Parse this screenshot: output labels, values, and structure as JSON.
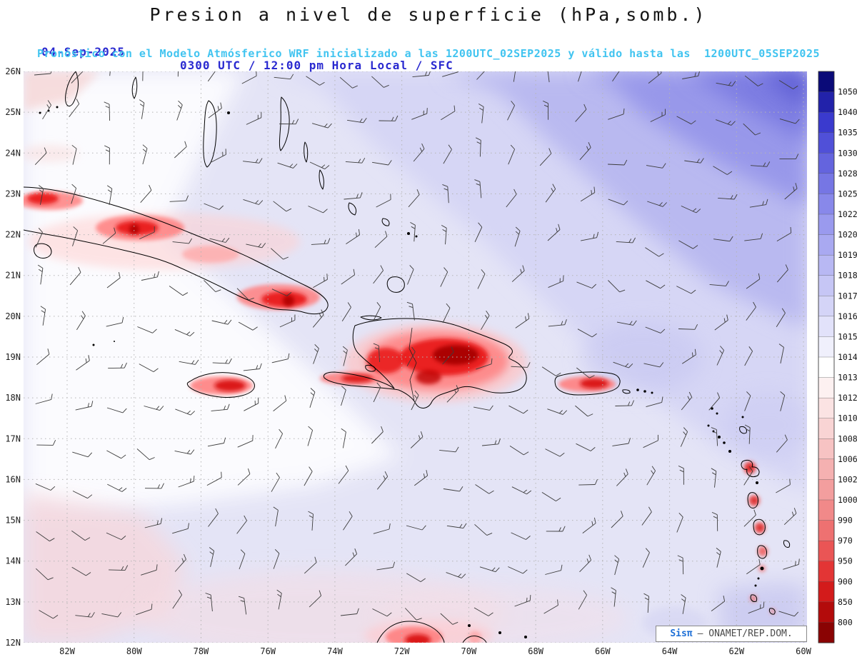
{
  "title": "Presion a nivel de superficie (hPa,somb.)",
  "header": {
    "date": "04-Sep-2025",
    "time": "0300 UTC / 12:00 pm Hora Local / SFC",
    "forecast_line": "Pronóstico con el Modelo Atmósferico WRF inicializado a las 1200UTC_02SEP2025 y válido hasta las  1200UTC_05SEP2025"
  },
  "footer": {
    "brand": "Sisπ",
    "source": "– ONAMET/REP.DOM."
  },
  "colors": {
    "title_text": "#141414",
    "date_text": "#2a2ad0",
    "forecast_text": "#41c4f0",
    "high_pressure_blue": "#6060d5",
    "low_pressure_red": "#b00000",
    "base_shade": "#e4e4f6"
  },
  "chart_data": {
    "type": "heatmap",
    "title": "Presion a nivel de superficie (hPa,somb.)",
    "variable": "Surface pressure (hPa, shaded) with surface wind barbs",
    "model": "WRF, init 1200UTC_02SEP2025, valid 1200UTC_05SEP2025",
    "region": "Caribbean: Cuba, Jamaica, Hispaniola, Puerto Rico, Bahamas, Lesser Antilles",
    "lat_ticks": [
      "26N",
      "25N",
      "24N",
      "23N",
      "22N",
      "21N",
      "20N",
      "19N",
      "18N",
      "17N",
      "16N",
      "15N",
      "14N",
      "13N",
      "12N"
    ],
    "lon_ticks": [
      "82W",
      "80W",
      "78W",
      "76W",
      "74W",
      "72W",
      "70W",
      "68W",
      "66W",
      "64W",
      "62W",
      "60W"
    ],
    "lat_range_deg": [
      12,
      26
    ],
    "lon_range_deg": [
      -83.3,
      -59.9
    ],
    "grid": "dotted graticule, 1 deg latitude x 2 deg longitude",
    "colorbar": {
      "units": "hPa",
      "position": "right",
      "levels": [
        1050,
        1040,
        1035,
        1030,
        1028,
        1025,
        1022,
        1020,
        1019,
        1018,
        1017,
        1016,
        1015,
        1014,
        1013,
        1012,
        1010,
        1008,
        1006,
        1002,
        1000,
        990,
        970,
        950,
        900,
        850,
        800
      ],
      "colors": [
        "#0a0a78",
        "#2222aa",
        "#3a3ace",
        "#5050d8",
        "#6464de",
        "#7676e4",
        "#8888ea",
        "#9a9aee",
        "#a9a9f1",
        "#b8b8f3",
        "#c6c6f5",
        "#d4d4f7",
        "#e2e2fa",
        "#f0f0fc",
        "#ffffff",
        "#fdf1f1",
        "#fbe3e3",
        "#f9d4d4",
        "#f7c3c3",
        "#f5b1b1",
        "#f39e9e",
        "#f18989",
        "#ee7171",
        "#ea5555",
        "#e33535",
        "#d31b1b",
        "#b30b0b",
        "#8a0303"
      ]
    },
    "field_notes": [
      {
        "area": "northeast Atlantic corner",
        "pressure_hPa": "1019-1025 (subtropical high, dark blue)"
      },
      {
        "area": "central and northwest Caribbean",
        "pressure_hPa": "1015-1017 (pale lavender)"
      },
      {
        "area": "west and bottom-left of map",
        "pressure_hPa": "1012-1014 (white to light pink)"
      },
      {
        "area": "island interiors (terrain minima)",
        "pressure_hPa": "below 1008 - red spots over Cuba, Hispaniola, Jamaica, Puerto Rico, Lesser Antilles, Guajira"
      }
    ],
    "wind_barbs": {
      "style": "station wind barbs on roughly 1x1 degree grid",
      "color": "#404040"
    }
  }
}
